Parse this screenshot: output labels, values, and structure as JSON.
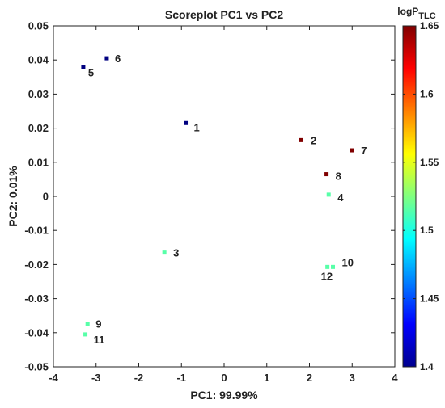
{
  "chart_data": {
    "type": "scatter",
    "title": "Scoreplot PC1 vs PC2",
    "xlabel": "PC1: 99.99%",
    "ylabel": "PC2: 0.01%",
    "xlim": [
      -4,
      4
    ],
    "ylim": [
      -0.05,
      0.05
    ],
    "x_ticks": [
      -4,
      -3,
      -2,
      -1,
      0,
      1,
      2,
      3,
      4
    ],
    "x_tick_labels": [
      "-4",
      "-3",
      "-2",
      "-1",
      "0",
      "1",
      "2",
      "3",
      "4"
    ],
    "y_ticks": [
      -0.05,
      -0.04,
      -0.03,
      -0.02,
      -0.01,
      0,
      0.01,
      0.02,
      0.03,
      0.04,
      0.05
    ],
    "y_tick_labels": [
      "-0.05",
      "-0.04",
      "-0.03",
      "-0.02",
      "-0.01",
      "0",
      "0.01",
      "0.02",
      "0.03",
      "0.04",
      "0.05"
    ],
    "grid": false,
    "points": [
      {
        "label": "1",
        "x": -0.9,
        "y": 0.0215,
        "c": 1.4
      },
      {
        "label": "2",
        "x": 1.8,
        "y": 0.0165,
        "c": 1.65
      },
      {
        "label": "3",
        "x": -1.4,
        "y": -0.0165,
        "c": 1.515
      },
      {
        "label": "4",
        "x": 2.45,
        "y": 0.0005,
        "c": 1.515
      },
      {
        "label": "5",
        "x": -3.3,
        "y": 0.038,
        "c": 1.4
      },
      {
        "label": "6",
        "x": -2.75,
        "y": 0.0405,
        "c": 1.4
      },
      {
        "label": "7",
        "x": 3.0,
        "y": 0.0135,
        "c": 1.65
      },
      {
        "label": "8",
        "x": 2.4,
        "y": 0.0065,
        "c": 1.65
      },
      {
        "label": "9",
        "x": -3.2,
        "y": -0.0375,
        "c": 1.515
      },
      {
        "label": "10",
        "x": 2.55,
        "y": -0.0207,
        "c": 1.515
      },
      {
        "label": "11",
        "x": -3.25,
        "y": -0.0405,
        "c": 1.515
      },
      {
        "label": "12",
        "x": 2.42,
        "y": -0.0207,
        "c": 1.515
      }
    ],
    "colorbar": {
      "title_main": "logP",
      "title_sub": "TLC",
      "range": [
        1.4,
        1.65
      ],
      "colormap": "jet",
      "ticks": [
        1.4,
        1.45,
        1.5,
        1.55,
        1.6,
        1.65
      ],
      "tick_labels": [
        "1.4",
        "1.45",
        "1.5",
        "1.55",
        "1.6",
        "1.65"
      ]
    }
  }
}
